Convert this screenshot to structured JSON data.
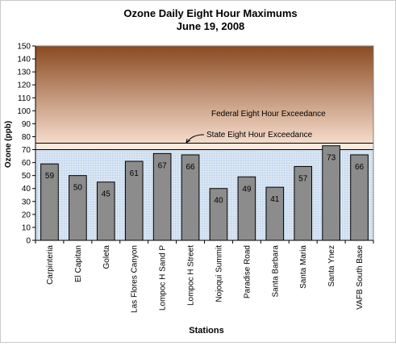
{
  "chart_data": {
    "type": "bar",
    "title": "Ozone Daily Eight Hour Maximums",
    "subtitle": "June 19, 2008",
    "xlabel": "Stations",
    "ylabel": "Ozone (ppb)",
    "ylim": [
      0,
      150
    ],
    "yticks": [
      0,
      10,
      20,
      30,
      40,
      50,
      60,
      70,
      80,
      90,
      100,
      110,
      120,
      130,
      140,
      150
    ],
    "grid": false,
    "legend": "none",
    "categories": [
      "Carpinteria",
      "El Capitan",
      "Goleta",
      "Las Flores Canyon",
      "Lompoc H Sand P",
      "Lompoc H Street",
      "Nojoqui Summit",
      "Paradise Road",
      "Santa Barbara",
      "Santa Maria",
      "Santa Ynez",
      "VAFB South Base"
    ],
    "values": [
      59,
      50,
      45,
      61,
      67,
      66,
      40,
      49,
      41,
      57,
      73,
      66
    ],
    "thresholds": {
      "state": {
        "label": "State Eight Hour Exceedance",
        "value": 70
      },
      "federal": {
        "label": "Federal Eight Hour Exceedance",
        "value": 75
      }
    },
    "colors": {
      "bar_fill": "#8c8c8c",
      "bar_stroke": "#000000",
      "exceedance_top": "#8a4b22",
      "exceedance_bottom": "#f6dccb",
      "below_zone": "#cfdff0",
      "state_band": "#fbe9dd"
    }
  }
}
